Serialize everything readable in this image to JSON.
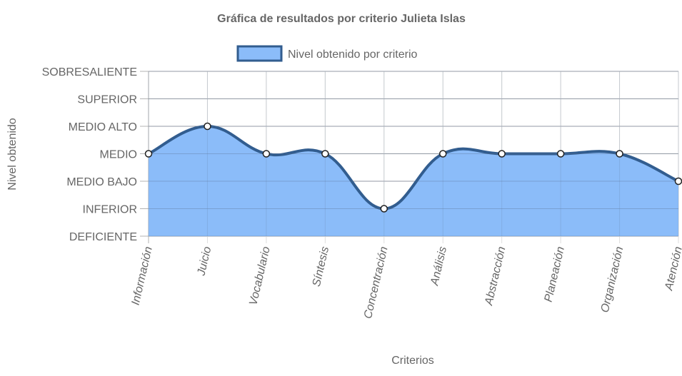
{
  "chart_data": {
    "type": "area",
    "title": "Gráfica de resultados por criterio Julieta Islas",
    "xlabel": "Criterios",
    "ylabel": "Nivel obtenido",
    "y_levels": [
      "DEFICIENTE",
      "INFERIOR",
      "MEDIO BAJO",
      "MEDIO",
      "MEDIO ALTO",
      "SUPERIOR",
      "SOBRESALIENTE"
    ],
    "ylim": [
      0,
      6
    ],
    "categories": [
      "Información",
      "Juicio",
      "Vocabulario",
      "Síntesis",
      "Concentración",
      "Análisis",
      "Abstracción",
      "Planeación",
      "Organización",
      "Atención"
    ],
    "series": [
      {
        "name": "Nivel obtenido por criterio",
        "values": [
          3,
          4,
          3,
          3,
          1,
          3,
          3,
          3,
          3,
          2
        ],
        "fill_color": "#8bbcf9",
        "line_color": "#325d8f"
      }
    ],
    "legend_position": "top-center",
    "grid": true,
    "curve": "smooth"
  }
}
